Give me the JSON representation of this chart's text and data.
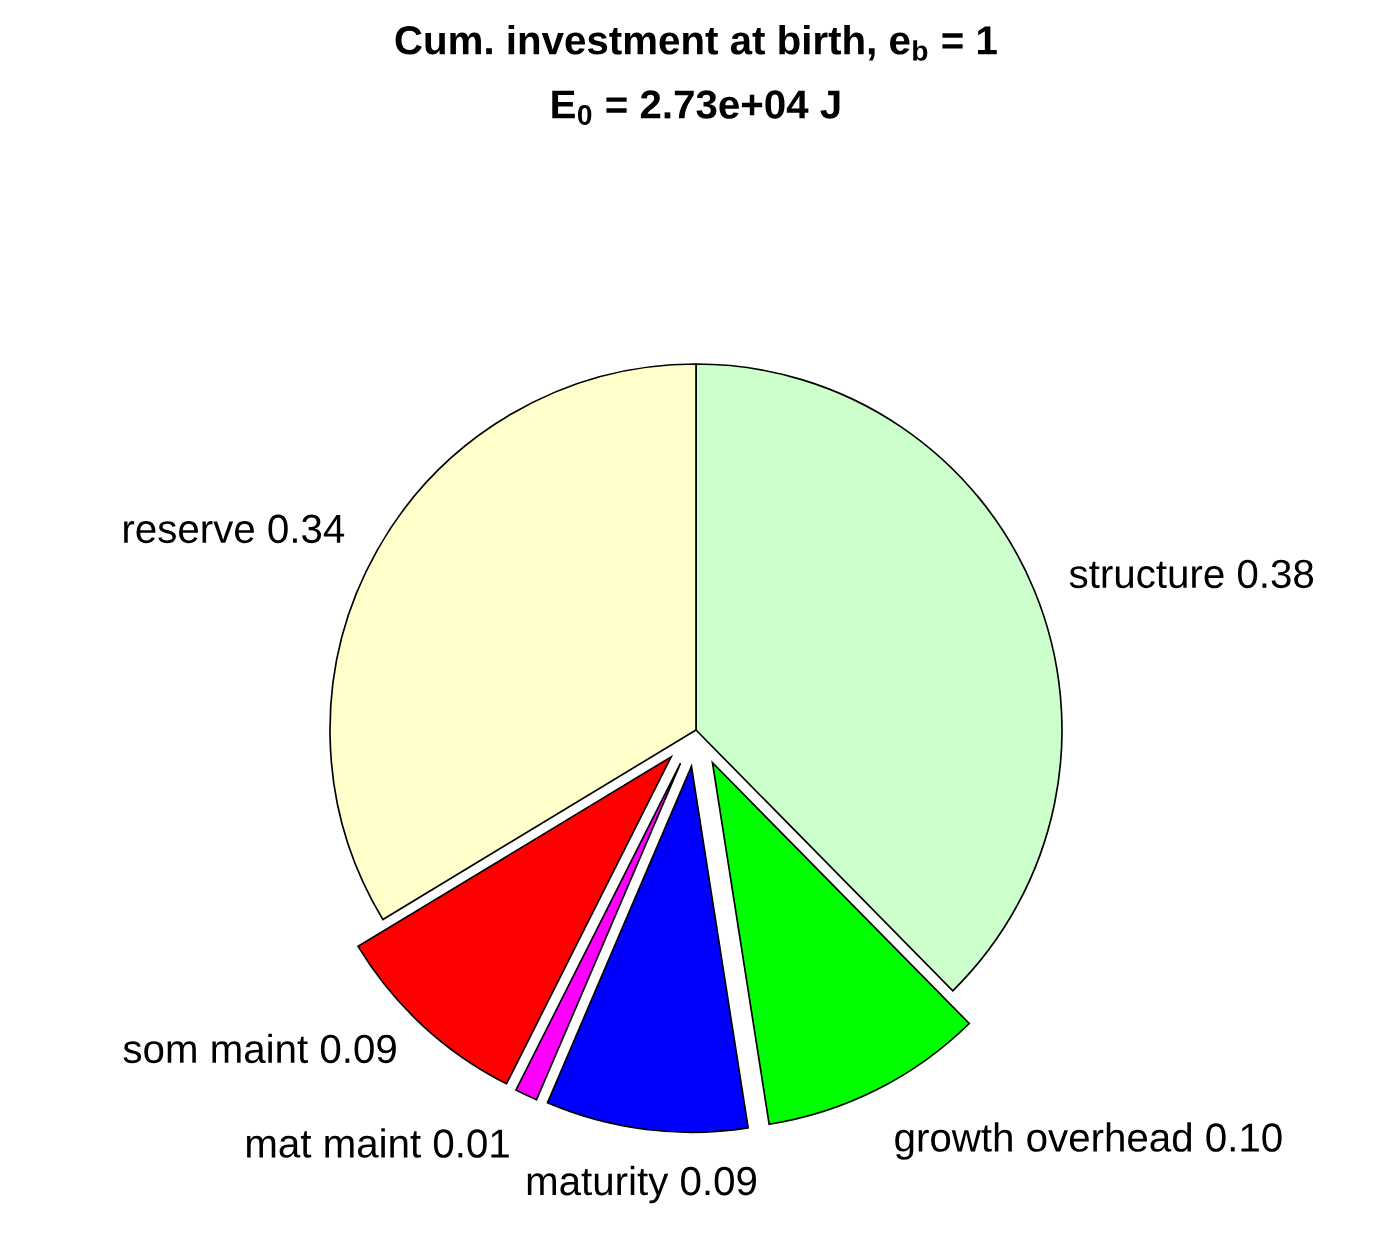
{
  "chart_data": {
    "type": "pie",
    "title": "Cum. investment at birth, e$_{b}$ = 1",
    "subtitle": "E$_{0}$ = 2.73e+04 J",
    "categories": [
      "structure",
      "growth overhead",
      "maturity",
      "mat maint",
      "som maint",
      "reserve"
    ],
    "values": [
      0.38,
      0.1,
      0.09,
      0.01,
      0.09,
      0.34
    ],
    "value_labels": [
      "0.38",
      "0.10",
      "0.09",
      "0.01",
      "0.09",
      "0.34"
    ],
    "colors": [
      "#ccffcc",
      "#00ff00",
      "#0000ff",
      "#ff00ff",
      "#ff0000",
      "#ffffcc"
    ]
  }
}
